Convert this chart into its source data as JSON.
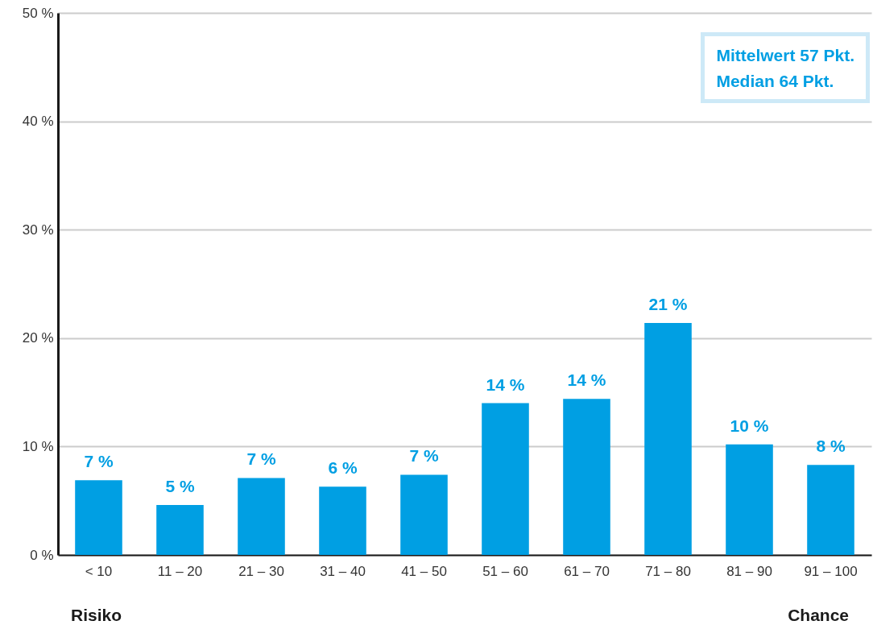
{
  "chart_data": {
    "type": "bar",
    "categories": [
      "< 10",
      "11 – 20",
      "21 – 30",
      "31 – 40",
      "41 – 50",
      "51 – 60",
      "61 – 70",
      "71 – 80",
      "81 – 90",
      "91 – 100"
    ],
    "values": [
      6.9,
      4.6,
      7.1,
      6.3,
      7.4,
      14.0,
      14.4,
      21.4,
      10.2,
      8.3
    ],
    "value_labels": [
      "7 %",
      "5 %",
      "7 %",
      "6 %",
      "7 %",
      "14 %",
      "14 %",
      "21 %",
      "10 %",
      "8 %"
    ],
    "color": "#009fe3",
    "ylim": [
      0,
      50
    ],
    "yticks": [
      {
        "value": 0,
        "label": "0 %"
      },
      {
        "value": 10,
        "label": "10 %"
      },
      {
        "value": 20,
        "label": "20 %"
      },
      {
        "value": 30,
        "label": "30 %"
      },
      {
        "value": 40,
        "label": "40 %"
      },
      {
        "value": 50,
        "label": "50 %"
      }
    ],
    "grid": "y",
    "annotations": [
      "Mittelwert 57 Pkt.",
      "Median 64 Pkt.",
      "Risiko",
      "Chance"
    ]
  }
}
